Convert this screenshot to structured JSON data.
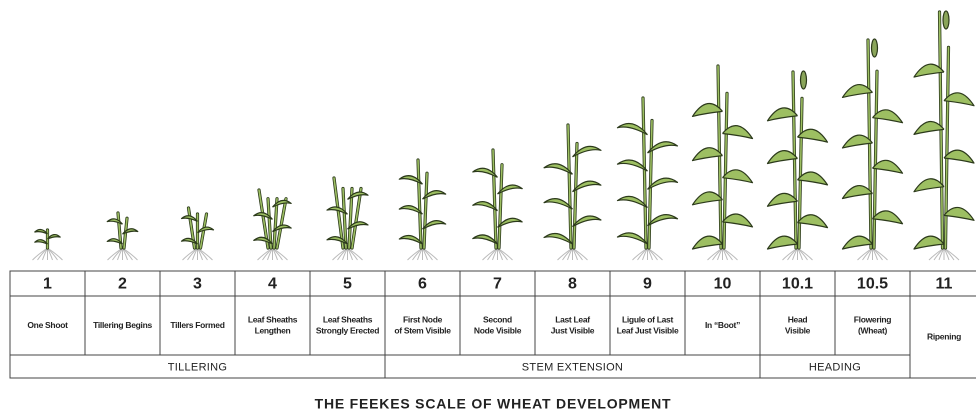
{
  "title": "THE FEEKES SCALE OF WHEAT DEVELOPMENT",
  "groups": [
    {
      "label": "TILLERING",
      "stages": [
        {
          "number": "1",
          "label": [
            "One Shoot"
          ]
        },
        {
          "number": "2",
          "label": [
            "Tillering Begins"
          ]
        },
        {
          "number": "3",
          "label": [
            "Tillers Formed"
          ]
        },
        {
          "number": "4",
          "label": [
            "Leaf Sheaths",
            "Lengthen"
          ]
        },
        {
          "number": "5",
          "label": [
            "Leaf Sheaths",
            "Strongly Erected"
          ]
        }
      ]
    },
    {
      "label": "STEM EXTENSION",
      "stages": [
        {
          "number": "6",
          "label": [
            "First Node",
            "of Stem Visible"
          ]
        },
        {
          "number": "7",
          "label": [
            "Second",
            "Node Visible"
          ]
        },
        {
          "number": "8",
          "label": [
            "Last Leaf",
            "Just Visible"
          ]
        },
        {
          "number": "9",
          "label": [
            "Ligule of Last",
            "Leaf Just Visible"
          ]
        },
        {
          "number": "10",
          "label": [
            "In “Boot”"
          ]
        }
      ]
    },
    {
      "label": "HEADING",
      "stages": [
        {
          "number": "10.1",
          "label": [
            "Head",
            "Visible"
          ]
        },
        {
          "number": "10.5",
          "label": [
            "Flowering",
            "(Wheat)"
          ]
        }
      ]
    }
  ],
  "ungrouped": [
    {
      "number": "11",
      "label": [
        "Ripening"
      ]
    }
  ]
}
